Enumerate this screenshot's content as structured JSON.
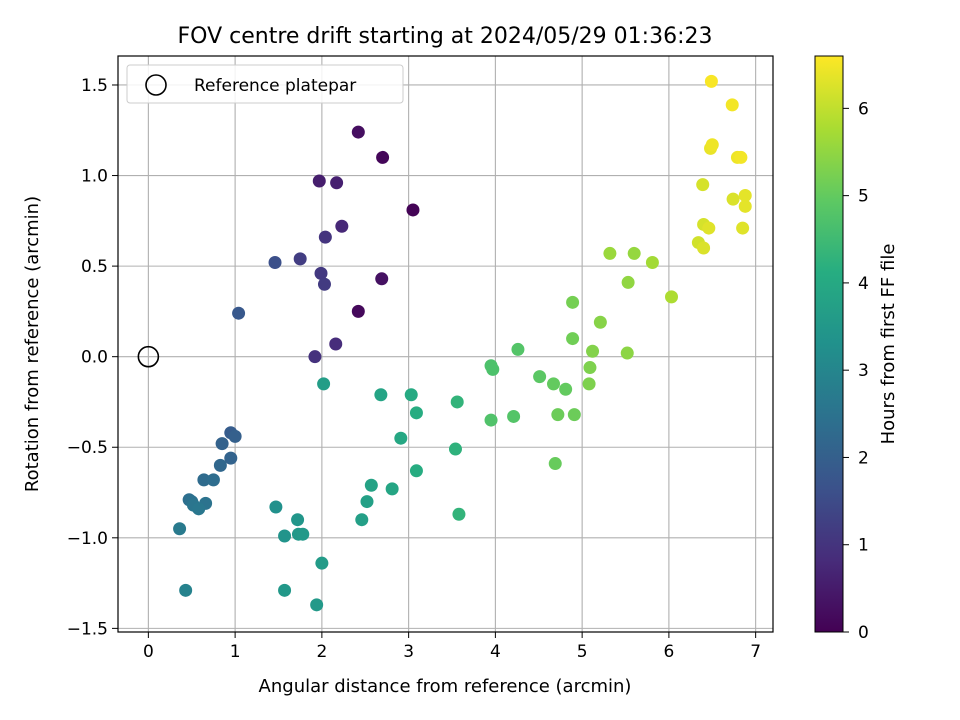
{
  "chart_data": {
    "type": "scatter",
    "title": "FOV centre drift starting at 2024/05/29 01:36:23",
    "xlabel": "Angular distance from reference (arcmin)",
    "ylabel": "Rotation from reference (arcmin)",
    "xlim": [
      -0.35,
      7.2
    ],
    "ylim": [
      -1.52,
      1.66
    ],
    "xticks": [
      0,
      1,
      2,
      3,
      4,
      5,
      6,
      7
    ],
    "xtick_labels": [
      "0",
      "1",
      "2",
      "3",
      "4",
      "5",
      "6",
      "7"
    ],
    "yticks": [
      -1.5,
      -1.0,
      -0.5,
      0.0,
      0.5,
      1.0,
      1.5
    ],
    "ytick_labels": [
      "−1.5",
      "−1.0",
      "−0.5",
      "0.0",
      "0.5",
      "1.0",
      "1.5"
    ],
    "grid": true,
    "legend": {
      "position": "top-left",
      "entries": [
        "Reference platepar"
      ]
    },
    "reference_point": {
      "x": 0,
      "y": 0,
      "marker": "open-circle"
    },
    "colorbar": {
      "label": "Hours from first FF file",
      "colormap": "viridis",
      "range": [
        0,
        6.6
      ],
      "ticks": [
        0,
        1,
        2,
        3,
        4,
        5,
        6
      ],
      "tick_labels": [
        "0",
        "1",
        "2",
        "3",
        "4",
        "5",
        "6"
      ]
    },
    "points": [
      {
        "x": 3.05,
        "y": 0.81,
        "c": 0.05
      },
      {
        "x": 2.7,
        "y": 1.1,
        "c": 0.1
      },
      {
        "x": 2.42,
        "y": 0.25,
        "c": 0.15
      },
      {
        "x": 2.42,
        "y": 1.24,
        "c": 0.25
      },
      {
        "x": 2.69,
        "y": 0.43,
        "c": 0.3
      },
      {
        "x": 1.97,
        "y": 0.97,
        "c": 0.55
      },
      {
        "x": 2.17,
        "y": 0.96,
        "c": 0.6
      },
      {
        "x": 2.23,
        "y": 0.72,
        "c": 0.75
      },
      {
        "x": 2.16,
        "y": 0.07,
        "c": 0.85
      },
      {
        "x": 1.92,
        "y": 0.0,
        "c": 0.95
      },
      {
        "x": 2.04,
        "y": 0.66,
        "c": 1.0
      },
      {
        "x": 1.99,
        "y": 0.46,
        "c": 1.1
      },
      {
        "x": 2.03,
        "y": 0.4,
        "c": 1.15
      },
      {
        "x": 1.75,
        "y": 0.54,
        "c": 1.2
      },
      {
        "x": 1.46,
        "y": 0.52,
        "c": 1.6
      },
      {
        "x": 1.04,
        "y": 0.24,
        "c": 1.8
      },
      {
        "x": 0.95,
        "y": -0.42,
        "c": 1.9
      },
      {
        "x": 1.0,
        "y": -0.44,
        "c": 2.0
      },
      {
        "x": 0.85,
        "y": -0.48,
        "c": 2.05
      },
      {
        "x": 0.95,
        "y": -0.56,
        "c": 2.1
      },
      {
        "x": 0.83,
        "y": -0.6,
        "c": 2.2
      },
      {
        "x": 0.64,
        "y": -0.68,
        "c": 2.3
      },
      {
        "x": 0.75,
        "y": -0.68,
        "c": 2.35
      },
      {
        "x": 0.47,
        "y": -0.79,
        "c": 2.4
      },
      {
        "x": 0.5,
        "y": -0.8,
        "c": 2.45
      },
      {
        "x": 0.66,
        "y": -0.81,
        "c": 2.5
      },
      {
        "x": 0.52,
        "y": -0.82,
        "c": 2.55
      },
      {
        "x": 0.58,
        "y": -0.84,
        "c": 2.6
      },
      {
        "x": 0.36,
        "y": -0.95,
        "c": 2.7
      },
      {
        "x": 0.43,
        "y": -1.29,
        "c": 2.9
      },
      {
        "x": 1.47,
        "y": -0.83,
        "c": 3.3
      },
      {
        "x": 1.57,
        "y": -0.99,
        "c": 3.4
      },
      {
        "x": 1.72,
        "y": -0.9,
        "c": 3.45
      },
      {
        "x": 1.73,
        "y": -0.98,
        "c": 3.5
      },
      {
        "x": 1.78,
        "y": -0.98,
        "c": 3.55
      },
      {
        "x": 1.57,
        "y": -1.29,
        "c": 3.5
      },
      {
        "x": 1.94,
        "y": -1.37,
        "c": 3.55
      },
      {
        "x": 2.0,
        "y": -1.14,
        "c": 3.6
      },
      {
        "x": 2.02,
        "y": -0.15,
        "c": 3.65
      },
      {
        "x": 2.46,
        "y": -0.9,
        "c": 3.7
      },
      {
        "x": 2.52,
        "y": -0.8,
        "c": 3.75
      },
      {
        "x": 2.57,
        "y": -0.71,
        "c": 3.8
      },
      {
        "x": 2.68,
        "y": -0.21,
        "c": 3.85
      },
      {
        "x": 2.81,
        "y": -0.73,
        "c": 3.9
      },
      {
        "x": 2.91,
        "y": -0.45,
        "c": 3.95
      },
      {
        "x": 3.03,
        "y": -0.21,
        "c": 4.05
      },
      {
        "x": 3.09,
        "y": -0.31,
        "c": 4.1
      },
      {
        "x": 3.09,
        "y": -0.63,
        "c": 4.1
      },
      {
        "x": 3.54,
        "y": -0.51,
        "c": 4.25
      },
      {
        "x": 3.56,
        "y": -0.25,
        "c": 4.3
      },
      {
        "x": 3.58,
        "y": -0.87,
        "c": 4.3
      },
      {
        "x": 3.95,
        "y": -0.05,
        "c": 4.7
      },
      {
        "x": 3.97,
        "y": -0.07,
        "c": 4.7
      },
      {
        "x": 3.95,
        "y": -0.35,
        "c": 4.75
      },
      {
        "x": 4.21,
        "y": -0.33,
        "c": 4.8
      },
      {
        "x": 4.26,
        "y": 0.04,
        "c": 4.8
      },
      {
        "x": 4.51,
        "y": -0.11,
        "c": 4.9
      },
      {
        "x": 4.67,
        "y": -0.15,
        "c": 5.0
      },
      {
        "x": 4.69,
        "y": -0.59,
        "c": 5.05
      },
      {
        "x": 4.72,
        "y": -0.32,
        "c": 5.1
      },
      {
        "x": 4.81,
        "y": -0.18,
        "c": 5.0
      },
      {
        "x": 4.91,
        "y": -0.32,
        "c": 5.1
      },
      {
        "x": 4.89,
        "y": 0.1,
        "c": 5.15
      },
      {
        "x": 4.89,
        "y": 0.3,
        "c": 5.2
      },
      {
        "x": 5.09,
        "y": -0.06,
        "c": 5.3
      },
      {
        "x": 5.08,
        "y": -0.15,
        "c": 5.3
      },
      {
        "x": 5.12,
        "y": 0.03,
        "c": 5.35
      },
      {
        "x": 5.21,
        "y": 0.19,
        "c": 5.4
      },
      {
        "x": 5.52,
        "y": 0.02,
        "c": 5.45
      },
      {
        "x": 5.53,
        "y": 0.41,
        "c": 5.5
      },
      {
        "x": 5.6,
        "y": 0.57,
        "c": 5.55
      },
      {
        "x": 5.32,
        "y": 0.57,
        "c": 5.6
      },
      {
        "x": 5.81,
        "y": 0.52,
        "c": 5.7
      },
      {
        "x": 6.03,
        "y": 0.33,
        "c": 5.8
      },
      {
        "x": 6.34,
        "y": 0.63,
        "c": 6.15
      },
      {
        "x": 6.4,
        "y": 0.73,
        "c": 6.2
      },
      {
        "x": 6.4,
        "y": 0.6,
        "c": 6.25
      },
      {
        "x": 6.46,
        "y": 0.71,
        "c": 6.3
      },
      {
        "x": 6.39,
        "y": 0.95,
        "c": 6.2
      },
      {
        "x": 6.74,
        "y": 0.87,
        "c": 6.25
      },
      {
        "x": 6.85,
        "y": 0.71,
        "c": 6.3
      },
      {
        "x": 6.88,
        "y": 0.83,
        "c": 6.35
      },
      {
        "x": 6.88,
        "y": 0.89,
        "c": 6.35
      },
      {
        "x": 6.48,
        "y": 1.15,
        "c": 6.4
      },
      {
        "x": 6.5,
        "y": 1.17,
        "c": 6.45
      },
      {
        "x": 6.79,
        "y": 1.1,
        "c": 6.45
      },
      {
        "x": 6.83,
        "y": 1.1,
        "c": 6.5
      },
      {
        "x": 6.73,
        "y": 1.39,
        "c": 6.5
      },
      {
        "x": 6.49,
        "y": 1.52,
        "c": 6.55
      }
    ]
  }
}
